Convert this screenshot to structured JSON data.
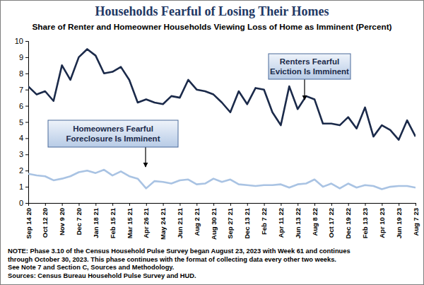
{
  "chart_data": {
    "type": "line",
    "title": "Households Fearful of Losing Their Homes",
    "subtitle": "Share of Renter and Homeowner Households Viewing Loss of Home as Imminent (Percent)",
    "categories": [
      "Sep 14 20",
      null,
      "Oct 12 20",
      null,
      "Nov 9 20",
      null,
      "Dec 7 20",
      null,
      "Jan 18 21",
      null,
      "Feb 15 21",
      null,
      "Mar 15 21",
      null,
      "Apr 26 21",
      null,
      "May 24 21",
      null,
      "Jun 21 21",
      null,
      "Aug 2 21",
      null,
      "Aug 30 21",
      null,
      "Sep 27 21",
      null,
      "Dec 13 21",
      null,
      "Feb 7 22",
      null,
      "Apr 11 22",
      null,
      "Jun 13 22",
      null,
      "Aug 8 22",
      null,
      "Oct 17 22",
      null,
      "Dec 19 22",
      null,
      "Feb 13 23",
      null,
      "Apr 10 23",
      null,
      "Jun 19 23",
      null,
      "Aug 7 23"
    ],
    "series": [
      {
        "name": "Renters Fearful\nEviction Is Imminent",
        "color": "#1b2a4a",
        "values": [
          7.2,
          6.7,
          6.9,
          6.3,
          8.5,
          7.6,
          9.0,
          9.5,
          9.1,
          8.0,
          8.1,
          8.4,
          7.6,
          6.2,
          6.4,
          6.2,
          6.1,
          6.6,
          6.5,
          7.6,
          7.0,
          6.9,
          6.7,
          6.2,
          5.6,
          6.9,
          6.1,
          7.1,
          7.0,
          5.6,
          4.8,
          7.2,
          5.8,
          6.6,
          6.4,
          4.9,
          4.9,
          4.8,
          5.3,
          4.6,
          5.9,
          4.1,
          4.8,
          4.5,
          3.9,
          5.1,
          4.1
        ]
      },
      {
        "name": "Homeowners Fearful\nForeclosure Is Imminent",
        "color": "#a9c3e3",
        "values": [
          1.8,
          1.7,
          1.65,
          1.4,
          1.5,
          1.65,
          1.9,
          2.0,
          1.85,
          2.05,
          1.7,
          1.95,
          1.65,
          1.5,
          0.9,
          1.35,
          1.3,
          1.2,
          1.4,
          1.45,
          1.15,
          1.2,
          1.5,
          1.3,
          1.45,
          1.15,
          1.1,
          1.05,
          1.1,
          1.1,
          1.15,
          0.95,
          1.15,
          1.2,
          1.45,
          1.0,
          1.2,
          0.9,
          1.2,
          0.95,
          1.1,
          1.05,
          0.85,
          1.0,
          1.05,
          1.05,
          0.95
        ]
      }
    ],
    "ylim": [
      0,
      10
    ],
    "yticks": [
      0,
      1,
      2,
      3,
      4,
      5,
      6,
      7,
      8,
      9,
      10
    ],
    "grid": false,
    "notes": [
      "NOTE: Phase 3.10 of the Census Household Pulse Survey began August 23, 2023 with Week 61 and continues",
      "through October 30, 2023. This phase continues with the format of collecting data every other two weeks.",
      "See Note 7 and Section C, Sources and Methodology.",
      "Sources: Census Bureau Household Pulse Survey and HUD."
    ]
  }
}
